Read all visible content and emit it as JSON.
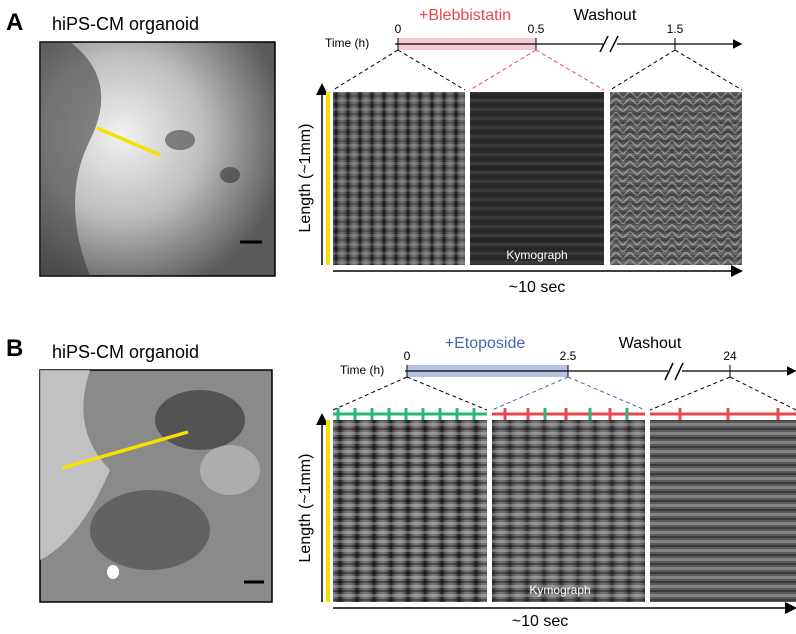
{
  "panels": [
    {
      "label": "A",
      "title": "hiPS-CM organoid",
      "time_label": "Time (h)",
      "ticks": [
        "0",
        "0.5",
        "1.5"
      ],
      "treatment": "+Blebbistatin",
      "washout": "Washout",
      "y_axis": "Length (~1mm)",
      "kymograph": "Kymograph",
      "x_axis": "~10 sec"
    },
    {
      "label": "B",
      "title": "hiPS-CM organoid",
      "time_label": "Time (h)",
      "ticks": [
        "0",
        "2.5",
        "24"
      ],
      "treatment": "+Etoposide",
      "washout": "Washout",
      "y_axis": "Length (~1mm)",
      "kymograph": "Kymograph",
      "x_axis": "~10 sec"
    }
  ]
}
